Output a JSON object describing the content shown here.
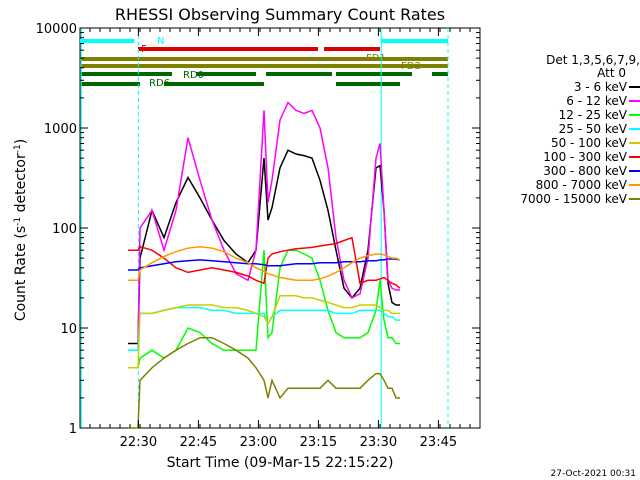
{
  "chart_data": {
    "type": "line",
    "title": "RHESSI Observing Summary Count Rates",
    "xlabel": "Start Time (09-Mar-15 22:15:22)",
    "ylabel_main": "Count Rate (s",
    "ylabel_sup1": "-1",
    "ylabel_mid": " detector",
    "ylabel_sup2": "-1",
    "ylabel_end": ")",
    "yscale": "log",
    "xlim_minutes": [
      0,
      100
    ],
    "ylim": [
      1,
      10000
    ],
    "x_ticks": [
      {
        "label": "22:30",
        "minute": 14.6
      },
      {
        "label": "22:45",
        "minute": 29.6
      },
      {
        "label": "23:00",
        "minute": 44.6
      },
      {
        "label": "23:15",
        "minute": 59.6
      },
      {
        "label": "23:30",
        "minute": 74.6
      },
      {
        "label": "23:45",
        "minute": 89.6
      }
    ],
    "y_ticks": [
      {
        "label": "1",
        "value": 1
      },
      {
        "label": "10",
        "value": 10
      },
      {
        "label": "100",
        "value": 100
      },
      {
        "label": "1000",
        "value": 1000
      },
      {
        "label": "10000",
        "value": 10000
      }
    ],
    "legend_title": "Det 1,3,5,6,7,9,",
    "legend_subtitle": "Att 0",
    "timestamp": "27-Oct-2021 00:31",
    "series": [
      {
        "name": "3 - 6 keV",
        "color": "#000000",
        "x": [
          12,
          14.5,
          15,
          18,
          21,
          24,
          27,
          30,
          33,
          36,
          39,
          42,
          44,
          46,
          47,
          48,
          50,
          52,
          54,
          56,
          58,
          60,
          62,
          64,
          66,
          68,
          70,
          72,
          74,
          75,
          76,
          77,
          78,
          79,
          80
        ],
        "y": [
          7,
          7,
          50,
          150,
          80,
          180,
          320,
          200,
          120,
          75,
          55,
          45,
          60,
          500,
          120,
          160,
          400,
          600,
          550,
          530,
          500,
          300,
          150,
          60,
          25,
          20,
          25,
          60,
          400,
          420,
          150,
          28,
          18,
          17,
          17
        ]
      },
      {
        "name": "6 - 12 keV",
        "color": "#ff00ff",
        "x": [
          12,
          14.5,
          15,
          18,
          21,
          24,
          27,
          30,
          33,
          36,
          39,
          42,
          44,
          46,
          47,
          48,
          50,
          52,
          54,
          56,
          58,
          60,
          62,
          64,
          66,
          68,
          70,
          72,
          74,
          75,
          76,
          77,
          78,
          79,
          80
        ],
        "y": [
          6,
          6,
          100,
          150,
          60,
          150,
          800,
          300,
          120,
          60,
          35,
          30,
          60,
          1500,
          180,
          300,
          1200,
          1800,
          1500,
          1400,
          1500,
          1000,
          400,
          80,
          30,
          20,
          22,
          50,
          500,
          700,
          150,
          30,
          25,
          24,
          24
        ]
      },
      {
        "name": "12 - 25 keV",
        "color": "#00ff00",
        "x": [
          12,
          14.5,
          15,
          18,
          21,
          24,
          27,
          30,
          33,
          36,
          39,
          42,
          44,
          46,
          47,
          48,
          50,
          52,
          54,
          56,
          58,
          60,
          62,
          64,
          66,
          68,
          70,
          72,
          74,
          75,
          76,
          77,
          78,
          79,
          80
        ],
        "y": [
          4,
          4,
          5,
          6,
          5,
          6,
          10,
          9,
          7,
          6,
          6,
          6,
          6,
          60,
          8,
          9,
          40,
          60,
          60,
          55,
          50,
          30,
          15,
          9,
          8,
          8,
          8,
          9,
          15,
          30,
          12,
          8,
          8,
          7,
          7
        ]
      },
      {
        "name": "25 - 50 keV",
        "color": "#00ffff",
        "x": [
          12,
          14.5,
          15,
          18,
          21,
          24,
          27,
          30,
          33,
          36,
          39,
          42,
          44,
          46,
          47,
          48,
          50,
          52,
          54,
          56,
          58,
          60,
          62,
          64,
          66,
          68,
          70,
          72,
          74,
          75,
          76,
          77,
          78,
          79,
          80
        ],
        "y": [
          6,
          6,
          14,
          14,
          15,
          16,
          16,
          16,
          15,
          15,
          14,
          14,
          14,
          14,
          11,
          13,
          15,
          15,
          15,
          15,
          15,
          15,
          15,
          14,
          14,
          14,
          15,
          15,
          15,
          15,
          14,
          13,
          13,
          12,
          12
        ]
      },
      {
        "name": "50 - 100 keV",
        "color": "#cccc00",
        "x": [
          12,
          14.5,
          15,
          18,
          21,
          24,
          27,
          30,
          33,
          36,
          39,
          42,
          44,
          46,
          47,
          48,
          50,
          52,
          54,
          56,
          58,
          60,
          62,
          64,
          66,
          68,
          70,
          72,
          74,
          75,
          76,
          77,
          78,
          79,
          80
        ],
        "y": [
          4,
          4,
          14,
          14,
          15,
          16,
          17,
          17,
          17,
          16,
          16,
          15,
          14,
          13,
          11,
          13,
          21,
          21,
          21,
          20,
          20,
          19,
          18,
          17,
          16,
          16,
          17,
          17,
          17,
          16,
          15,
          15,
          14,
          14,
          14
        ]
      },
      {
        "name": "100 - 300 keV",
        "color": "#ff0000",
        "x": [
          12,
          14.5,
          15,
          18,
          21,
          24,
          27,
          30,
          33,
          36,
          39,
          42,
          44,
          46,
          47,
          48,
          50,
          52,
          54,
          56,
          58,
          60,
          62,
          64,
          66,
          68,
          70,
          72,
          74,
          75,
          76,
          77,
          78,
          79,
          80
        ],
        "y": [
          60,
          60,
          65,
          60,
          50,
          40,
          36,
          38,
          40,
          38,
          36,
          33,
          30,
          28,
          50,
          55,
          58,
          60,
          62,
          63,
          64,
          66,
          68,
          70,
          75,
          80,
          28,
          30,
          30,
          31,
          32,
          30,
          28,
          27,
          25
        ]
      },
      {
        "name": "300 - 800 keV",
        "color": "#0000ff",
        "x": [
          12,
          14.5,
          15,
          18,
          21,
          24,
          27,
          30,
          33,
          36,
          39,
          42,
          44,
          46,
          47,
          48,
          50,
          52,
          54,
          56,
          58,
          60,
          62,
          64,
          66,
          68,
          70,
          72,
          74,
          75,
          76,
          77,
          78,
          79,
          80
        ],
        "y": [
          38,
          38,
          40,
          42,
          44,
          46,
          47,
          48,
          47,
          46,
          45,
          44,
          44,
          43,
          42,
          42,
          42,
          43,
          44,
          44,
          44,
          45,
          45,
          45,
          46,
          46,
          46,
          47,
          47,
          48,
          48,
          49,
          49,
          49,
          48
        ]
      },
      {
        "name": "800 - 7000 keV",
        "color": "#ff9900",
        "x": [
          12,
          14.5,
          15,
          18,
          21,
          24,
          27,
          30,
          33,
          36,
          39,
          42,
          44,
          46,
          47,
          48,
          50,
          52,
          54,
          56,
          58,
          60,
          62,
          64,
          66,
          68,
          70,
          72,
          74,
          75,
          76,
          77,
          78,
          79,
          80
        ],
        "y": [
          30,
          30,
          38,
          45,
          52,
          58,
          63,
          65,
          63,
          58,
          50,
          45,
          40,
          37,
          35,
          34,
          32,
          31,
          30,
          30,
          30,
          31,
          33,
          36,
          40,
          45,
          50,
          53,
          55,
          55,
          54,
          52,
          50,
          50,
          48
        ]
      },
      {
        "name": "7000 - 15000 keV",
        "color": "#808000",
        "x": [
          12,
          14.5,
          15,
          18,
          21,
          24,
          27,
          30,
          33,
          36,
          39,
          42,
          44,
          46,
          47,
          48,
          50,
          52,
          54,
          56,
          58,
          60,
          62,
          64,
          66,
          68,
          70,
          72,
          74,
          75,
          76,
          77,
          78,
          79,
          80
        ],
        "y": [
          1,
          1,
          3,
          4,
          5,
          6,
          7,
          8,
          8,
          7,
          6,
          5,
          4,
          3,
          2,
          3,
          2,
          2.5,
          2.5,
          2.5,
          2.5,
          2.5,
          3,
          2.5,
          2.5,
          2.5,
          2.5,
          3,
          3.5,
          3.5,
          3,
          2.5,
          2.5,
          2,
          2
        ]
      }
    ],
    "status_bars": [
      {
        "name": "N",
        "label": "N",
        "color": "#00ffff",
        "segments": [
          [
            0,
            13.6
          ],
          [
            75.3,
            92
          ]
        ]
      },
      {
        "name": "F",
        "label": "F",
        "color": "#dd0000",
        "segments": [
          [
            14.5,
            59.5
          ],
          [
            61,
            75
          ]
        ]
      },
      {
        "name": "FD1",
        "label": "FD1",
        "color": "#808000",
        "segments": [
          [
            0,
            92
          ]
        ]
      },
      {
        "name": "FD2",
        "label": "FD2",
        "color": "#808000",
        "segments": [
          [
            0,
            92
          ]
        ]
      },
      {
        "name": "RD0",
        "label": "RD0",
        "color": "#006600",
        "segments": [
          [
            0,
            23
          ],
          [
            29,
            44
          ],
          [
            46.5,
            63
          ],
          [
            64,
            83
          ],
          [
            88,
            92
          ]
        ]
      },
      {
        "name": "RD6",
        "label": "RD6",
        "color": "#006600",
        "segments": [
          [
            0,
            15
          ],
          [
            21,
            46
          ],
          [
            64,
            80
          ]
        ]
      }
    ],
    "vertical_lines": [
      {
        "name": "night-start",
        "minute": 0.3,
        "color": "#00ffff",
        "style": "solid"
      },
      {
        "name": "night-end",
        "minute": 14.6,
        "color": "#00ffff",
        "style": "dashed"
      },
      {
        "name": "saa-start",
        "minute": 75.3,
        "color": "#00ffff",
        "style": "solid"
      },
      {
        "name": "saa-end",
        "minute": 92,
        "color": "#00ffff",
        "style": "dashed"
      }
    ]
  }
}
